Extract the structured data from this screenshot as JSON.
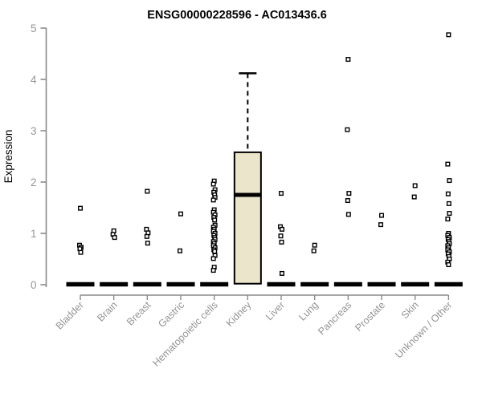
{
  "title": "ENSG00000228596 - AC013436.6",
  "ylabel": "Expression",
  "chart_data": {
    "type": "boxplot",
    "title": "ENSG00000228596 - AC013436.6",
    "xlabel": "",
    "ylabel": "Expression",
    "ylim": [
      0,
      5
    ],
    "yticks": [
      0,
      1,
      2,
      3,
      4,
      5
    ],
    "grid": false,
    "legend": "none",
    "categories": [
      "Bladder",
      "Brain",
      "Breast",
      "Gastric",
      "Hematopoietic cells",
      "Kidney",
      "Liver",
      "Lung",
      "Pancreas",
      "Prostate",
      "Skin",
      "Unknown / Other"
    ],
    "series": [
      {
        "name": "Bladder",
        "box": {
          "median": 0,
          "q1": 0,
          "q3": 0,
          "whisker_low": 0,
          "whisker_high": 0
        },
        "points": [
          1.49,
          0.77,
          0.73,
          0.7,
          0.63
        ]
      },
      {
        "name": "Brain",
        "box": {
          "median": 0,
          "q1": 0,
          "q3": 0,
          "whisker_low": 0,
          "whisker_high": 0
        },
        "points": [
          1.05,
          0.98,
          0.92
        ]
      },
      {
        "name": "Breast",
        "box": {
          "median": 0,
          "q1": 0,
          "q3": 0,
          "whisker_low": 0,
          "whisker_high": 0
        },
        "points": [
          1.82,
          1.08,
          1.01,
          0.94,
          0.81
        ]
      },
      {
        "name": "Gastric",
        "box": {
          "median": 0,
          "q1": 0,
          "q3": 0,
          "whisker_low": 0,
          "whisker_high": 0
        },
        "points": [
          1.38,
          0.66
        ]
      },
      {
        "name": "Hematopoietic cells",
        "box": {
          "median": 0,
          "q1": 0,
          "q3": 0,
          "whisker_low": 0,
          "whisker_high": 0
        },
        "points": [
          2.02,
          1.96,
          1.85,
          1.8,
          1.75,
          1.7,
          1.65,
          1.46,
          1.41,
          1.36,
          1.31,
          1.26,
          1.16,
          1.12,
          1.08,
          1.04,
          1.0,
          0.96,
          0.92,
          0.88,
          0.84,
          0.8,
          0.76,
          0.72,
          0.68,
          0.65,
          0.57,
          0.51,
          0.34,
          0.28
        ]
      },
      {
        "name": "Kidney",
        "box": {
          "median": 1.75,
          "q1": 0.02,
          "q3": 2.58,
          "whisker_low": 0.02,
          "whisker_high": 4.12
        },
        "points": []
      },
      {
        "name": "Liver",
        "box": {
          "median": 0,
          "q1": 0,
          "q3": 0,
          "whisker_low": 0,
          "whisker_high": 0
        },
        "points": [
          1.78,
          1.13,
          1.08,
          0.95,
          0.83,
          0.22
        ]
      },
      {
        "name": "Lung",
        "box": {
          "median": 0,
          "q1": 0,
          "q3": 0,
          "whisker_low": 0,
          "whisker_high": 0
        },
        "points": [
          0.77,
          0.66
        ]
      },
      {
        "name": "Pancreas",
        "box": {
          "median": 0,
          "q1": 0,
          "q3": 0,
          "whisker_low": 0,
          "whisker_high": 0
        },
        "points": [
          4.39,
          3.02,
          1.78,
          1.64,
          1.37
        ]
      },
      {
        "name": "Prostate",
        "box": {
          "median": 0,
          "q1": 0,
          "q3": 0,
          "whisker_low": 0,
          "whisker_high": 0
        },
        "points": [
          1.35,
          1.17
        ]
      },
      {
        "name": "Skin",
        "box": {
          "median": 0,
          "q1": 0,
          "q3": 0,
          "whisker_low": 0,
          "whisker_high": 0
        },
        "points": [
          1.93,
          1.71
        ]
      },
      {
        "name": "Unknown / Other",
        "box": {
          "median": 0,
          "q1": 0,
          "q3": 0,
          "whisker_low": 0,
          "whisker_high": 0
        },
        "points": [
          4.87,
          2.35,
          2.03,
          1.77,
          1.58,
          1.39,
          1.28,
          1.0,
          0.96,
          0.92,
          0.88,
          0.84,
          0.8,
          0.76,
          0.72,
          0.68,
          0.64,
          0.6,
          0.55,
          0.5,
          0.44,
          0.39
        ]
      }
    ],
    "colors": {
      "box_fill": "#EBE5CB",
      "box_border": "#000000",
      "median": "#000000",
      "zero_bar": "#000000",
      "axis": "#8a8a8a",
      "tick_label": "#969696",
      "category_label": "#949494",
      "axis_title": "#999999",
      "title": "#000000",
      "marker_stroke": "#000000",
      "marker_fill": "#ffffff",
      "background": "#ffffff"
    }
  }
}
